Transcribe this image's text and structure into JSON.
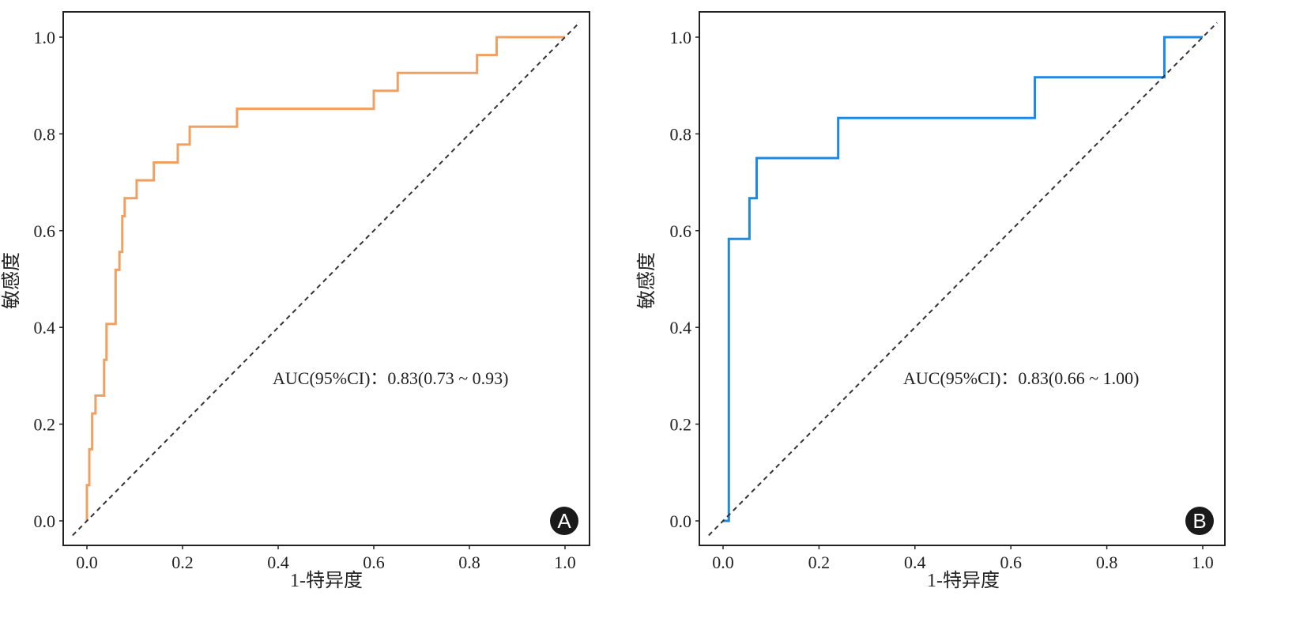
{
  "chart_data": [
    {
      "type": "line",
      "panel_label": "A",
      "xlabel": "1-特异度",
      "ylabel": "敏感度",
      "xlim": [
        0,
        1
      ],
      "ylim": [
        0,
        1
      ],
      "x_ticks": [
        "0.0",
        "0.2",
        "0.4",
        "0.6",
        "0.8",
        "1.0"
      ],
      "y_ticks": [
        "0.0",
        "0.2",
        "0.4",
        "0.6",
        "0.8",
        "1.0"
      ],
      "annotation": "AUC(95%CI)：0.83(0.73 ~ 0.93)",
      "grid": false,
      "series": [
        {
          "name": "ROC",
          "color": "#f0a060",
          "step": true,
          "x": [
            0,
            0.005,
            0.011,
            0.018,
            0.036,
            0.041,
            0.06,
            0.068,
            0.074,
            0.079,
            0.104,
            0.14,
            0.19,
            0.215,
            0.314,
            0.6,
            0.65,
            0.816,
            0.857,
            1.0
          ],
          "y": [
            0.074,
            0.148,
            0.222,
            0.259,
            0.333,
            0.407,
            0.519,
            0.556,
            0.63,
            0.667,
            0.704,
            0.741,
            0.778,
            0.815,
            0.852,
            0.889,
            0.926,
            0.963,
            1.0,
            1.0
          ]
        },
        {
          "name": "reference",
          "color": "#333333",
          "dashed": true,
          "x": [
            0,
            1
          ],
          "y": [
            0,
            1
          ]
        }
      ]
    },
    {
      "type": "line",
      "panel_label": "B",
      "xlabel": "1-特异度",
      "ylabel": "敏感度",
      "xlim": [
        0,
        1
      ],
      "ylim": [
        0,
        1
      ],
      "x_ticks": [
        "0.0",
        "0.2",
        "0.4",
        "0.6",
        "0.8",
        "1.0"
      ],
      "y_ticks": [
        "0.0",
        "0.2",
        "0.4",
        "0.6",
        "0.8",
        "1.0"
      ],
      "annotation": "AUC(95%CI)：0.83(0.66 ~ 1.00)",
      "grid": false,
      "series": [
        {
          "name": "ROC",
          "color": "#1e88e5",
          "step": true,
          "x": [
            0,
            0.012,
            0.055,
            0.07,
            0.24,
            0.65,
            0.92,
            1.0
          ],
          "y": [
            0,
            0.583,
            0.667,
            0.75,
            0.833,
            0.917,
            1.0,
            1.0
          ]
        },
        {
          "name": "reference",
          "color": "#333333",
          "dashed": true,
          "x": [
            0,
            1
          ],
          "y": [
            0,
            1
          ]
        }
      ]
    }
  ]
}
